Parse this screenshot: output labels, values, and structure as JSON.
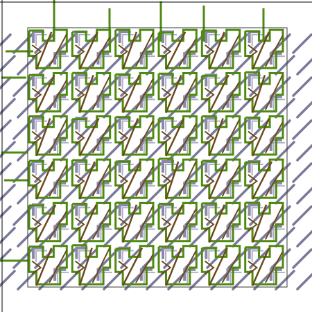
{
  "artwork": {
    "description_name": "tiled-maze-pattern",
    "grid": {
      "cols": 6,
      "rows": 6
    },
    "colors": {
      "background": "#ffffff",
      "frame": "#3a3a3a",
      "diagonal": "#6b6b8f",
      "shadow_step": "#8a8aa8",
      "green": "#4f8a10",
      "brown": "#6b4a1a"
    },
    "offset_jitter": [
      [
        0,
        2,
        -1,
        3,
        0,
        1
      ],
      [
        2,
        -1,
        1,
        0,
        3,
        -2
      ],
      [
        -1,
        3,
        0,
        2,
        -1,
        1
      ],
      [
        1,
        0,
        2,
        -2,
        1,
        3
      ],
      [
        3,
        1,
        -1,
        1,
        0,
        -1
      ],
      [
        0,
        -2,
        3,
        0,
        2,
        1
      ]
    ]
  }
}
